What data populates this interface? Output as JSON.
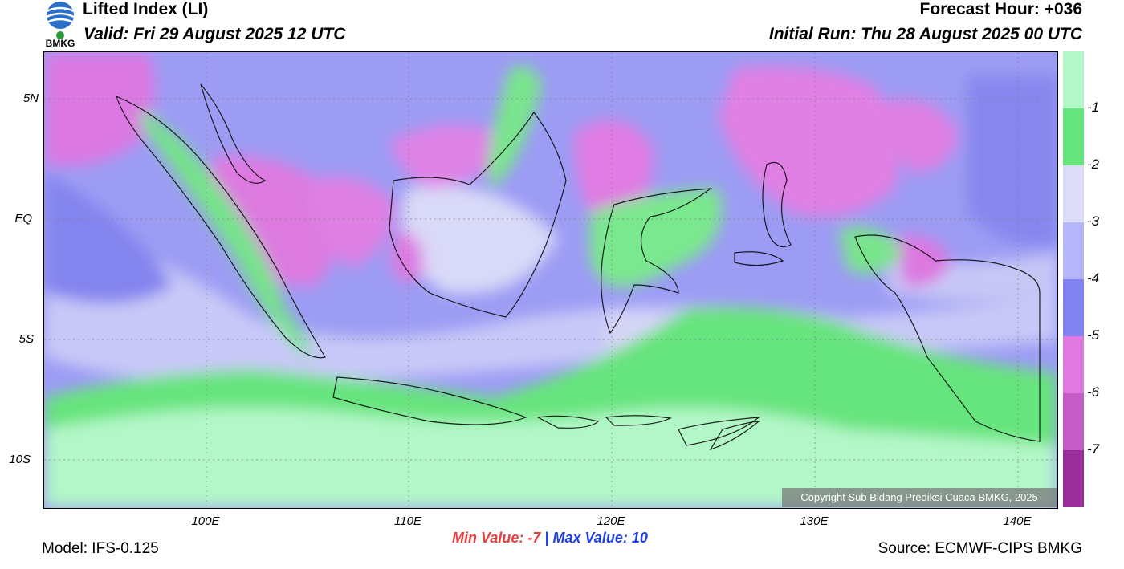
{
  "header": {
    "title": "Lifted Index (LI)",
    "valid": "Valid: Fri 29 August 2025 12 UTC",
    "forecast_hour": "Forecast Hour: +036",
    "initial_run": "Initial Run: Thu 28 August 2025 00 UTC"
  },
  "logo": {
    "text": "BMKG"
  },
  "axes": {
    "lat_labels": [
      "5N",
      "EQ",
      "5S",
      "10S"
    ],
    "lon_labels": [
      "100E",
      "110E",
      "120E",
      "130E",
      "140E"
    ]
  },
  "colorbar": {
    "labels": [
      "-1",
      "-2",
      "-3",
      "-4",
      "-5",
      "-6",
      "-7"
    ],
    "colors": [
      "#b3f7c8",
      "#66e47d",
      "#dcdcf8",
      "#b5b5f7",
      "#8282f0",
      "#e07ae0",
      "#c45cc6",
      "#9a2f9a"
    ]
  },
  "stats": {
    "min_label": "Min Value:",
    "min_value": "-7",
    "separator": "|",
    "max_label": "Max Value:",
    "max_value": "10"
  },
  "footer": {
    "model": "Model: IFS-0.125",
    "source": "Source: ECMWF-CIPS BMKG",
    "copyright": "Copyright Sub Bidang Prediksi Cuaca BMKG, 2025"
  }
}
